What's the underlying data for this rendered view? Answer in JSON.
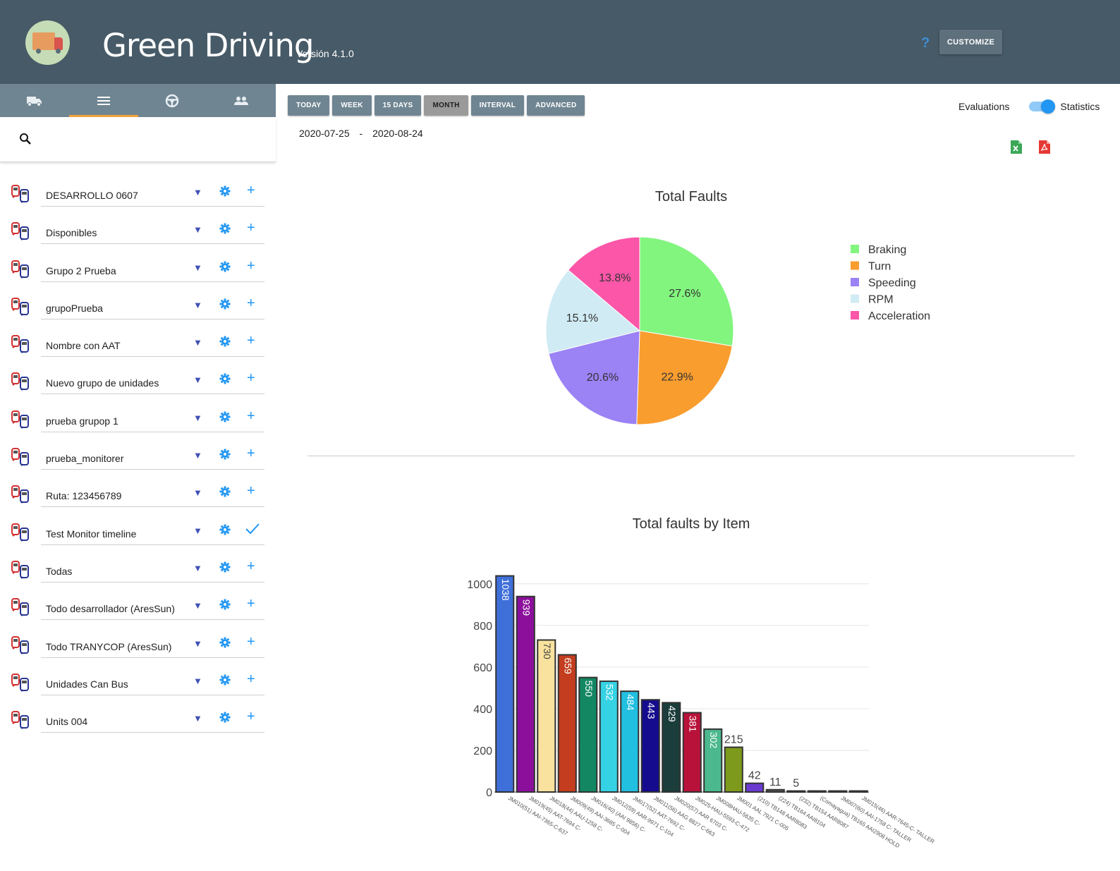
{
  "header": {
    "title": "Green Driving",
    "version": "Versión 4.1.0",
    "help_icon": "?",
    "customize_label": "CUSTOMIZE"
  },
  "sidebar": {
    "tabs": [
      {
        "icon": "truck-icon"
      },
      {
        "icon": "list-icon",
        "active": true
      },
      {
        "icon": "steering-wheel-icon"
      },
      {
        "icon": "people-icon"
      }
    ],
    "search_placeholder": "",
    "groups": [
      {
        "label": "DESARROLLO 0607",
        "action": "plus"
      },
      {
        "label": "Disponibles",
        "action": "plus"
      },
      {
        "label": "Grupo 2 Prueba",
        "action": "plus"
      },
      {
        "label": "grupoPrueba",
        "action": "plus"
      },
      {
        "label": "Nombre con AAT",
        "action": "plus"
      },
      {
        "label": "Nuevo grupo de unidades",
        "action": "plus"
      },
      {
        "label": "prueba grupop 1",
        "action": "plus"
      },
      {
        "label": "prueba_monitorer",
        "action": "plus"
      },
      {
        "label": "Ruta: 123456789",
        "action": "plus"
      },
      {
        "label": "Test Monitor timeline",
        "action": "check"
      },
      {
        "label": "Todas",
        "action": "plus"
      },
      {
        "label": "Todo desarrollador (AresSun)",
        "action": "plus"
      },
      {
        "label": "Todo TRANYCOP (AresSun)",
        "action": "plus"
      },
      {
        "label": "Unidades Can Bus",
        "action": "plus"
      },
      {
        "label": "Units 004",
        "action": "plus"
      }
    ]
  },
  "toolbar": {
    "range_buttons": [
      "TODAY",
      "WEEK",
      "15 DAYS",
      "MONTH",
      "INTERVAL",
      "ADVANCED"
    ],
    "active_range": "MONTH",
    "date_from": "2020-07-25",
    "date_separator": "-",
    "date_to": "2020-08-24",
    "toggle_left_label": "Evaluations",
    "toggle_right_label": "Statistics",
    "toggle_on": true
  },
  "colors": {
    "header_bg": "#475a67",
    "tab_bg": "#6f8592",
    "accent": "#2196f3"
  },
  "chart_data": [
    {
      "type": "pie",
      "title": "Total Faults",
      "labels": [
        "Braking",
        "Turn",
        "Speeding",
        "RPM",
        "Acceleration"
      ],
      "values": [
        27.6,
        22.9,
        20.6,
        15.1,
        13.8
      ],
      "value_labels": [
        "27.6%",
        "22.9%",
        "20.6%",
        "15.1%",
        "13.8%"
      ],
      "colors": [
        "#82f57f",
        "#f99d2f",
        "#9b82f5",
        "#d0ebf3",
        "#fb56a8"
      ],
      "legend_position": "right"
    },
    {
      "type": "bar",
      "title": "Total faults by Item",
      "ylim": [
        0,
        1050
      ],
      "yticks": [
        0,
        200,
        400,
        600,
        800,
        1000
      ],
      "grid": true,
      "categories": [
        "JM010(51) AAI-7365-C-637",
        "JM019(45) AAT-7694 C-",
        "JM018(44) AAU-1258 C-",
        "JM009(49) AAI-3685 C-004",
        "JM016(40) (AAI 9856) C-",
        "JM012(59) AAR-9971 C-104",
        "JM017(52) AAT-7692 C-",
        "JM011(56) AAG 8827 C-663",
        "JM020(57) AAR 6703 C-",
        "JM025-HAU-5593-C-472",
        "JM008HAU-5635 C-",
        "JM001 AAL 7921 C-005",
        "(210) TB148 AAR8083",
        "(224) TB164 AAI8104",
        "(232) TB154 AAR8087",
        "(Comayagua) TB165 AAI2908 HOLD",
        "JM007(60) AAI-1758 C- TALLER",
        "JM015(46) AAR-7645-C- TALLER"
      ],
      "values": [
        1038,
        939,
        730,
        659,
        550,
        532,
        484,
        443,
        429,
        381,
        302,
        215,
        42,
        11,
        5,
        0,
        0,
        0
      ],
      "value_labels": [
        "1038",
        "939",
        "730",
        "659",
        "550",
        "532",
        "484",
        "443",
        "429",
        "381",
        "302",
        "215",
        "42",
        "11",
        "5",
        "",
        "",
        ""
      ],
      "colors": [
        "#3f6fd9",
        "#8c0f9c",
        "#f8e29e",
        "#c33d1e",
        "#128762",
        "#35d2e4",
        "#21bfe0",
        "#150b8e",
        "#1b3d3c",
        "#b8123b",
        "#4cb88e",
        "#7e9a1c",
        "#6a3bd1",
        "#555555",
        "#666666",
        "#444444",
        "#444444",
        "#444444"
      ]
    }
  ]
}
